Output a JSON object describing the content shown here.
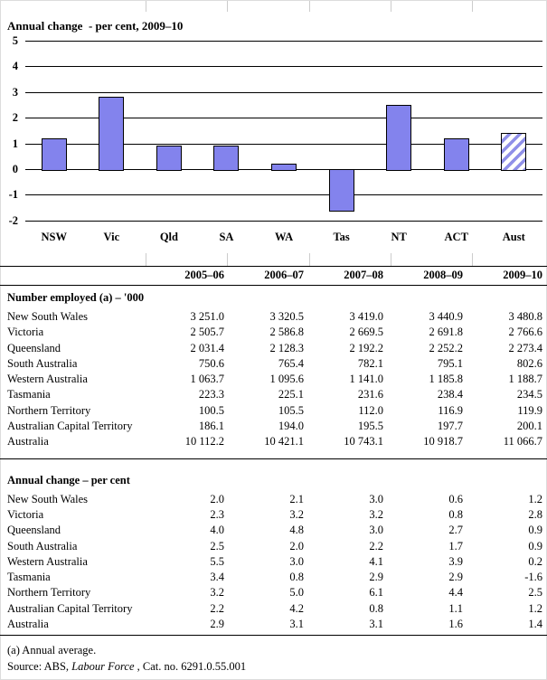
{
  "chart": {
    "title": "Annual change  - per cent, 2009–10",
    "y_ticks": [
      "5",
      "4",
      "3",
      "2",
      "1",
      "0",
      "-1",
      "-2"
    ],
    "bar_fill": "#8383ED",
    "hatch_stripe": "#9090E8",
    "gridline_color": "#000000"
  },
  "chart_data": {
    "type": "bar",
    "title": "Annual change - per cent, 2009–10",
    "categories": [
      "NSW",
      "Vic",
      "Qld",
      "SA",
      "WA",
      "Tas",
      "NT",
      "ACT",
      "Aust"
    ],
    "values": [
      1.2,
      2.8,
      0.9,
      0.9,
      0.2,
      -1.6,
      2.5,
      1.2,
      1.4
    ],
    "ylim": [
      -2,
      5
    ],
    "yticks": [
      5,
      4,
      3,
      2,
      1,
      0,
      -1,
      -2
    ],
    "grid": true,
    "ylabel": "per cent",
    "hatched_category": "Aust",
    "legend": "none"
  },
  "table": {
    "col_headers": [
      "2005–06",
      "2006–07",
      "2007–08",
      "2008–09",
      "2009–10"
    ],
    "sections": [
      {
        "title": "Number employed (a) – '000",
        "rows": [
          {
            "label": "New South Wales",
            "values": [
              "3 251.0",
              "3 320.5",
              "3 419.0",
              "3 440.9",
              "3 480.8"
            ]
          },
          {
            "label": "Victoria",
            "values": [
              "2 505.7",
              "2 586.8",
              "2 669.5",
              "2 691.8",
              "2 766.6"
            ]
          },
          {
            "label": "Queensland",
            "values": [
              "2 031.4",
              "2 128.3",
              "2 192.2",
              "2 252.2",
              "2 273.4"
            ]
          },
          {
            "label": "South Australia",
            "values": [
              "750.6",
              "765.4",
              "782.1",
              "795.1",
              "802.6"
            ]
          },
          {
            "label": "Western Australia",
            "values": [
              "1 063.7",
              "1 095.6",
              "1 141.0",
              "1 185.8",
              "1 188.7"
            ]
          },
          {
            "label": "Tasmania",
            "values": [
              "223.3",
              "225.1",
              "231.6",
              "238.4",
              "234.5"
            ]
          },
          {
            "label": "Northern Territory",
            "values": [
              "100.5",
              "105.5",
              "112.0",
              "116.9",
              "119.9"
            ]
          },
          {
            "label": "Australian Capital Territory",
            "values": [
              "186.1",
              "194.0",
              "195.5",
              "197.7",
              "200.1"
            ]
          },
          {
            "label": "Australia",
            "values": [
              "10 112.2",
              "10 421.1",
              "10 743.1",
              "10 918.7",
              "11 066.7"
            ]
          }
        ]
      },
      {
        "title": "Annual change – per cent",
        "rows": [
          {
            "label": "New South Wales",
            "values": [
              "2.0",
              "2.1",
              "3.0",
              "0.6",
              "1.2"
            ]
          },
          {
            "label": "Victoria",
            "values": [
              "2.3",
              "3.2",
              "3.2",
              "0.8",
              "2.8"
            ]
          },
          {
            "label": "Queensland",
            "values": [
              "4.0",
              "4.8",
              "3.0",
              "2.7",
              "0.9"
            ]
          },
          {
            "label": "South Australia",
            "values": [
              "2.5",
              "2.0",
              "2.2",
              "1.7",
              "0.9"
            ]
          },
          {
            "label": "Western Australia",
            "values": [
              "5.5",
              "3.0",
              "4.1",
              "3.9",
              "0.2"
            ]
          },
          {
            "label": "Tasmania",
            "values": [
              "3.4",
              "0.8",
              "2.9",
              "2.9",
              "-1.6"
            ]
          },
          {
            "label": "Northern Territory",
            "values": [
              "3.2",
              "5.0",
              "6.1",
              "4.4",
              "2.5"
            ]
          },
          {
            "label": "Australian Capital Territory",
            "values": [
              "2.2",
              "4.2",
              "0.8",
              "1.1",
              "1.2"
            ]
          },
          {
            "label": "Australia",
            "values": [
              "2.9",
              "3.1",
              "3.1",
              "1.6",
              "1.4"
            ]
          }
        ]
      }
    ]
  },
  "footer": {
    "note": "(a) Annual average.",
    "source_prefix": "Source: ABS, ",
    "source_italic": "Labour Force",
    "source_suffix": " , Cat. no. 6291.0.55.001"
  }
}
